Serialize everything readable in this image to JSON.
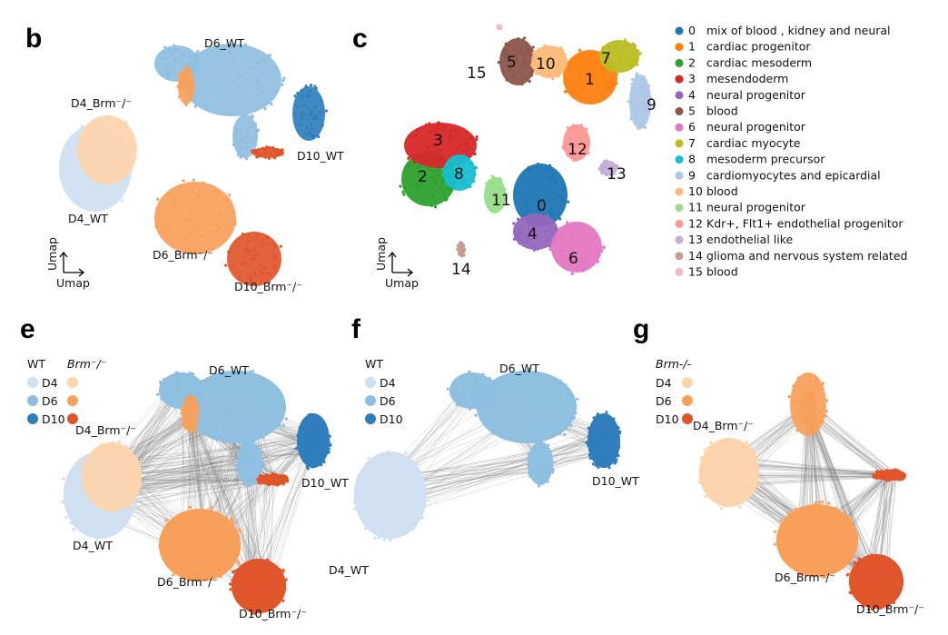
{
  "panels": {
    "b": "b",
    "c": "c",
    "e": "e",
    "f": "f",
    "g": "g"
  },
  "axis_label": "Umap",
  "sample_labels": {
    "d6_wt": "D6_WT",
    "d10_wt": "D10_WT",
    "d4_wt": "D4_WT",
    "d4_brm": "D4_Brm⁻/⁻",
    "d6_brm": "D6_Brm⁻/⁻",
    "d10_brm": "D10_Brm⁻/⁻"
  },
  "condition_legend": {
    "wt": "WT",
    "brm": "Brm⁻/⁻",
    "brm_g": "Brm-/-",
    "days": [
      "D4",
      "D6",
      "D10"
    ],
    "wt_colors": [
      "#cfe0f1",
      "#8fbfe0",
      "#2f7ebc"
    ],
    "brm_colors": [
      "#fdd4ad",
      "#f7a05a",
      "#e0552a"
    ]
  },
  "chart_data": {
    "type": "scatter",
    "subtype": "umap",
    "grid": false,
    "clusters": [
      {
        "id": "0",
        "name": "mix of blood , kidney and neural",
        "color": "#1f77b4"
      },
      {
        "id": "1",
        "name": "cardiac progenitor",
        "color": "#ff7f0e"
      },
      {
        "id": "2",
        "name": "cardiac mesoderm",
        "color": "#2ca02c"
      },
      {
        "id": "3",
        "name": "mesendoderm",
        "color": "#d62728"
      },
      {
        "id": "4",
        "name": "neural progenitor",
        "color": "#9467bd"
      },
      {
        "id": "5",
        "name": "blood",
        "color": "#8c564b"
      },
      {
        "id": "6",
        "name": "neural progenitor",
        "color": "#e377c2"
      },
      {
        "id": "7",
        "name": "cardiac myocyte",
        "color": "#bcbd22"
      },
      {
        "id": "8",
        "name": "mesoderm precursor",
        "color": "#17becf"
      },
      {
        "id": "9",
        "name": "cardiomyocytes and epicardial",
        "color": "#aec7e8"
      },
      {
        "id": "10",
        "name": "blood",
        "color": "#ffbb78"
      },
      {
        "id": "11",
        "name": "neural progenitor",
        "color": "#98df8a"
      },
      {
        "id": "12",
        "name": "Kdr+, Flt1+ endothelial progenitor",
        "color": "#ff9896"
      },
      {
        "id": "13",
        "name": "endothelial like",
        "color": "#c5b0d5"
      },
      {
        "id": "14",
        "name": "glioma and nervous system related",
        "color": "#c49c94"
      },
      {
        "id": "15",
        "name": "blood",
        "color": "#f7b6d2"
      }
    ],
    "legend_position": "right"
  }
}
